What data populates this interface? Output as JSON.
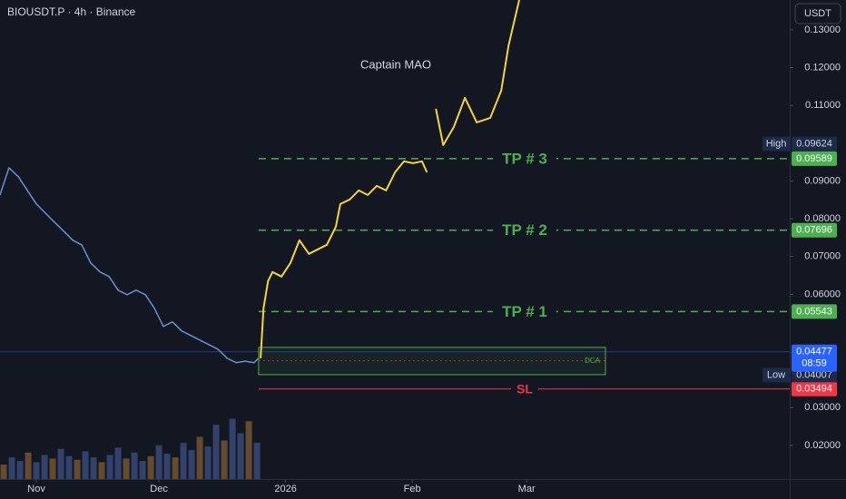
{
  "chart_data": {
    "type": "line",
    "title": "BIOUSDT.P · 4h · Binance",
    "annotation": "Captain MAO",
    "currency": "USDT",
    "grid": false,
    "xlim": [
      -8.9,
      184.4
    ],
    "xticks": [
      {
        "value": 0,
        "label": "Nov"
      },
      {
        "value": 30,
        "label": "Dec"
      },
      {
        "value": 61,
        "label": "2026"
      },
      {
        "value": 92,
        "label": "Feb"
      },
      {
        "value": 120,
        "label": "Mar"
      }
    ],
    "ylim": [
      0.0111,
      0.1379
    ],
    "yticks": [
      {
        "value": 0.13,
        "label": "0.13000"
      },
      {
        "value": 0.12,
        "label": "0.12000"
      },
      {
        "value": 0.11,
        "label": "0.11000"
      },
      {
        "value": 0.09,
        "label": "0.09000"
      },
      {
        "value": 0.08,
        "label": "0.08000"
      },
      {
        "value": 0.07,
        "label": "0.07000"
      },
      {
        "value": 0.06,
        "label": "0.06000"
      },
      {
        "value": 0.03,
        "label": "0.03000"
      },
      {
        "value": 0.02,
        "label": "0.02000"
      }
    ],
    "series": [
      {
        "color": "#6a8fcf",
        "x": [
          -8.9,
          -6.7,
          -4.4,
          -2.2,
          0,
          2.2,
          4.4,
          6.7,
          8.9,
          11.1,
          13.3,
          15.6,
          17.8,
          20,
          22.2,
          24.4,
          26.7,
          28.9,
          31.1,
          33.3,
          35.6,
          37.8,
          40,
          42.2,
          44.4,
          46.7,
          48.9,
          51.1,
          53.3,
          54.4
        ],
        "values": [
          0.0863,
          0.0935,
          0.0911,
          0.0875,
          0.0839,
          0.0815,
          0.0791,
          0.0767,
          0.0743,
          0.0731,
          0.0683,
          0.0659,
          0.0647,
          0.0611,
          0.0599,
          0.0611,
          0.0599,
          0.0563,
          0.0515,
          0.0527,
          0.0503,
          0.0491,
          0.0479,
          0.0467,
          0.0455,
          0.0431,
          0.0419,
          0.0423,
          0.0419,
          0.0431
        ]
      },
      {
        "color": "#f5d33b",
        "x": [
          54.9,
          55.6,
          56.7,
          57.8,
          60,
          62.2,
          64.4,
          66.7,
          68.9,
          71.1,
          73.3,
          74.4,
          76.7,
          78.9,
          81.1,
          83.3,
          85.6,
          87.8,
          90,
          92.2,
          94.4,
          95.6,
          97,
          97.8,
          99.6,
          102.2,
          104.9,
          107.8,
          111.1,
          113.8,
          115.6,
          118.2
        ],
        "values": [
          0.0431,
          0.0563,
          0.0635,
          0.0659,
          0.0647,
          0.0683,
          0.0743,
          0.0707,
          0.0719,
          0.0731,
          0.0779,
          0.0839,
          0.0851,
          0.0875,
          0.0863,
          0.0887,
          0.0875,
          0.0923,
          0.0952,
          0.0947,
          0.0952,
          0.0923,
          null,
          0.1091,
          0.0995,
          0.1043,
          0.112,
          0.1055,
          0.1067,
          0.1139,
          0.1259,
          0.1379
        ]
      }
    ],
    "volume": {
      "vlim": [
        0,
        100
      ],
      "x": [
        -8,
        -6,
        -4,
        -2,
        0,
        2,
        4,
        6,
        8,
        10,
        12,
        14,
        16,
        18,
        20,
        22,
        24,
        26,
        28,
        30,
        32,
        34,
        36,
        38,
        40,
        42,
        44,
        46,
        48,
        50,
        52,
        54
      ],
      "values": [
        12,
        18,
        15,
        22,
        14,
        20,
        17,
        25,
        19,
        16,
        23,
        18,
        14,
        20,
        26,
        17,
        22,
        15,
        19,
        28,
        21,
        18,
        30,
        24,
        35,
        27,
        45,
        32,
        50,
        38,
        48,
        30
      ]
    },
    "levels": [
      {
        "name": "TP # 3",
        "value": 0.09589,
        "value_label": "0.09589",
        "color": "#4caf50"
      },
      {
        "name": "TP # 2",
        "value": 0.07696,
        "value_label": "0.07696",
        "color": "#4caf50"
      },
      {
        "name": "TP # 1",
        "value": 0.05543,
        "value_label": "0.05543",
        "color": "#4caf50"
      },
      {
        "name": "SL",
        "value": 0.03494,
        "value_label": "0.03494",
        "color": "#f23645"
      }
    ],
    "dca": {
      "name": "DCA",
      "x": [
        54.4,
        139.3
      ],
      "top": 0.04595,
      "bottom": 0.03874,
      "mid": 0.0424
    },
    "high": {
      "label": "High",
      "value": 0.09624,
      "value_label": "0.09624"
    },
    "low": {
      "label": "Low",
      "value": 0.04007,
      "value_label": "0.04007"
    },
    "last": {
      "value": 0.04477,
      "value_label": "0.04477",
      "countdown": "08:59"
    }
  }
}
